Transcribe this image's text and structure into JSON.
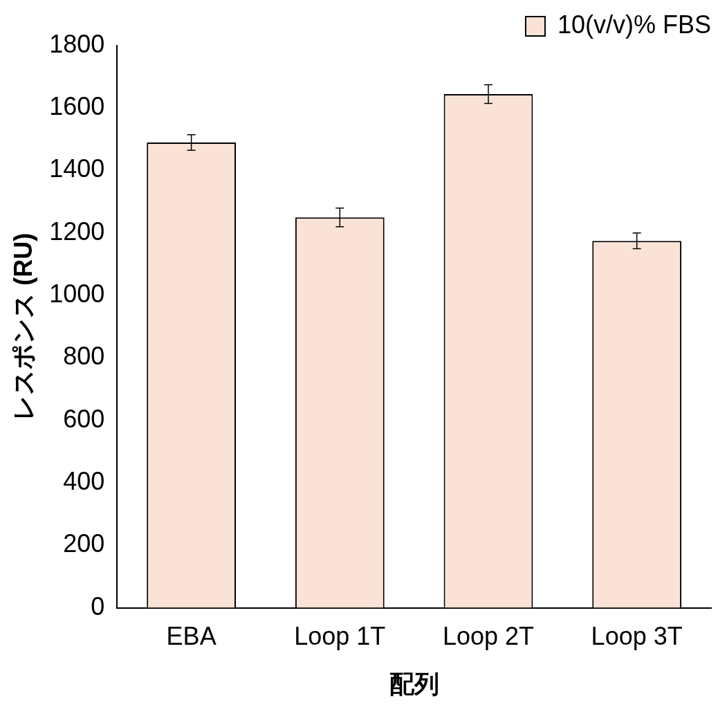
{
  "chart_data": {
    "type": "bar",
    "xlabel": "配列",
    "ylabel": "レスポンス (RU)",
    "categories": [
      "EBA",
      "Loop 1T",
      "Loop 2T",
      "Loop 3T"
    ],
    "series": [
      {
        "name": "10(v/v)% FBS",
        "color": "#fae3d6",
        "values": [
          1490,
          1250,
          1645,
          1175
        ],
        "errors": [
          25,
          30,
          30,
          25
        ]
      }
    ],
    "ylim": [
      0,
      1800
    ],
    "yticks": [
      0,
      200,
      400,
      600,
      800,
      1000,
      1200,
      1400,
      1600,
      1800
    ],
    "grid": false,
    "legend": "top right"
  }
}
